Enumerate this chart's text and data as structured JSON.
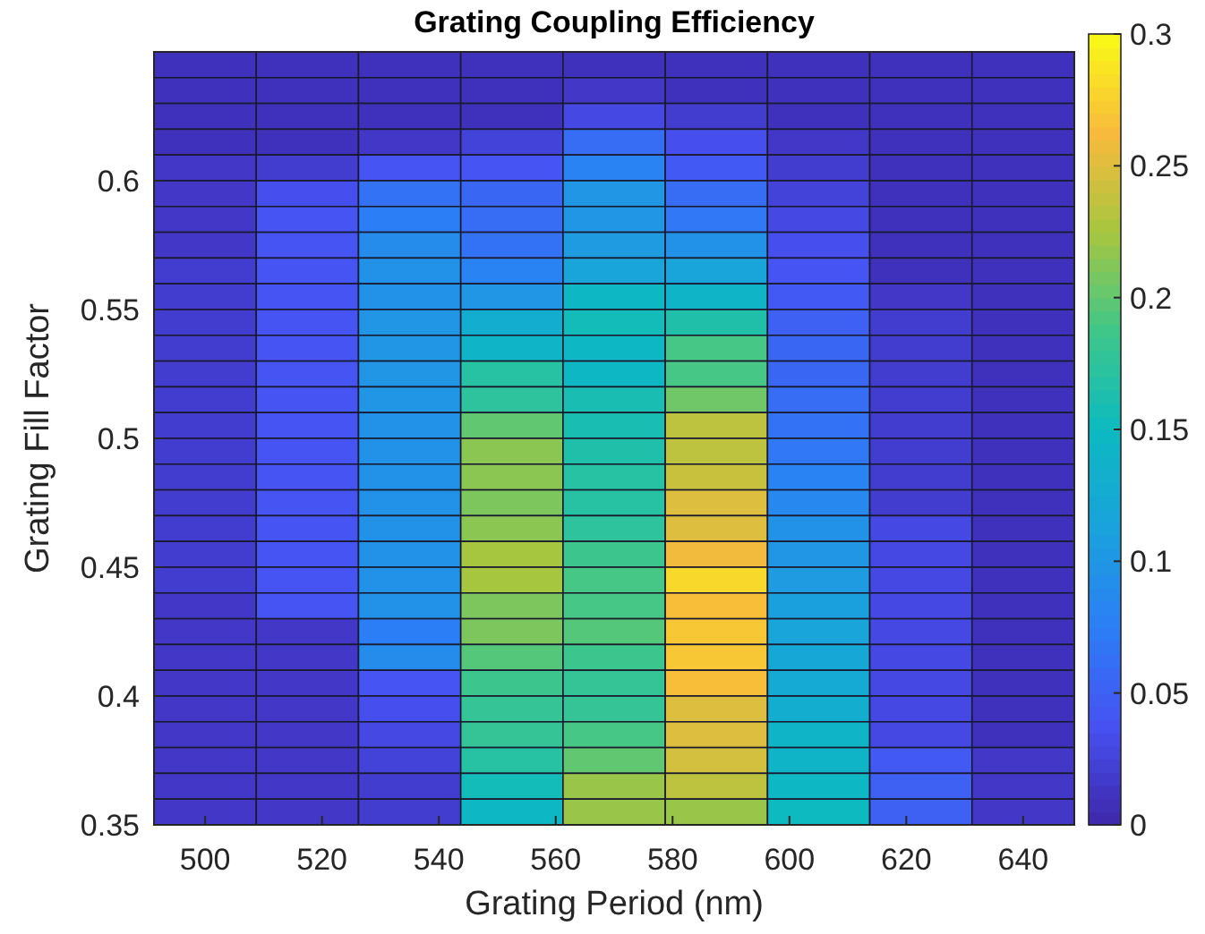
{
  "chart_data": {
    "type": "heatmap",
    "title": "Grating Coupling Efficiency",
    "xlabel": "Grating Period (nm)",
    "ylabel": "Grating Fill Factor",
    "x": [
      500,
      517.5,
      535,
      552.5,
      570,
      587.5,
      605,
      622.5,
      640
    ],
    "y": [
      0.645,
      0.635,
      0.625,
      0.615,
      0.605,
      0.595,
      0.585,
      0.575,
      0.565,
      0.555,
      0.545,
      0.535,
      0.525,
      0.515,
      0.505,
      0.495,
      0.485,
      0.475,
      0.465,
      0.455,
      0.445,
      0.435,
      0.425,
      0.415,
      0.405,
      0.395,
      0.385,
      0.375,
      0.365,
      0.355
    ],
    "xlim": [
      491.25,
      648.75
    ],
    "ylim": [
      0.35,
      0.65
    ],
    "xticks": [
      500,
      520,
      540,
      560,
      580,
      600,
      620,
      640
    ],
    "yticks": [
      0.35,
      0.4,
      0.45,
      0.5,
      0.55,
      0.6
    ],
    "clim": [
      0,
      0.3
    ],
    "cticks": [
      0,
      0.05,
      0.1,
      0.15,
      0.2,
      0.25,
      0.3
    ],
    "cells": [
      [
        0.01,
        0.01,
        0.01,
        0.01,
        0.01,
        0.01,
        0.01,
        0.01,
        0.01
      ],
      [
        0.01,
        0.01,
        0.01,
        0.01,
        0.015,
        0.01,
        0.01,
        0.01,
        0.01
      ],
      [
        0.01,
        0.01,
        0.01,
        0.01,
        0.03,
        0.02,
        0.01,
        0.01,
        0.01
      ],
      [
        0.01,
        0.01,
        0.015,
        0.025,
        0.06,
        0.035,
        0.015,
        0.01,
        0.01
      ],
      [
        0.015,
        0.02,
        0.04,
        0.04,
        0.08,
        0.045,
        0.02,
        0.01,
        0.01
      ],
      [
        0.015,
        0.035,
        0.065,
        0.055,
        0.1,
        0.06,
        0.025,
        0.01,
        0.01
      ],
      [
        0.015,
        0.04,
        0.075,
        0.06,
        0.1,
        0.07,
        0.03,
        0.01,
        0.01
      ],
      [
        0.015,
        0.04,
        0.09,
        0.065,
        0.105,
        0.095,
        0.035,
        0.01,
        0.01
      ],
      [
        0.02,
        0.04,
        0.095,
        0.08,
        0.115,
        0.115,
        0.04,
        0.01,
        0.01
      ],
      [
        0.02,
        0.04,
        0.095,
        0.1,
        0.145,
        0.14,
        0.045,
        0.015,
        0.01
      ],
      [
        0.02,
        0.04,
        0.1,
        0.13,
        0.155,
        0.165,
        0.05,
        0.02,
        0.01
      ],
      [
        0.02,
        0.04,
        0.1,
        0.14,
        0.145,
        0.19,
        0.055,
        0.02,
        0.01
      ],
      [
        0.02,
        0.04,
        0.1,
        0.17,
        0.145,
        0.19,
        0.055,
        0.02,
        0.01
      ],
      [
        0.02,
        0.04,
        0.1,
        0.175,
        0.16,
        0.205,
        0.06,
        0.02,
        0.01
      ],
      [
        0.02,
        0.04,
        0.095,
        0.2,
        0.16,
        0.235,
        0.065,
        0.02,
        0.01
      ],
      [
        0.02,
        0.04,
        0.095,
        0.215,
        0.165,
        0.235,
        0.07,
        0.02,
        0.01
      ],
      [
        0.02,
        0.04,
        0.095,
        0.215,
        0.17,
        0.24,
        0.08,
        0.02,
        0.01
      ],
      [
        0.02,
        0.04,
        0.095,
        0.21,
        0.17,
        0.25,
        0.085,
        0.02,
        0.01
      ],
      [
        0.02,
        0.04,
        0.095,
        0.215,
        0.175,
        0.25,
        0.095,
        0.03,
        0.01
      ],
      [
        0.02,
        0.04,
        0.095,
        0.225,
        0.185,
        0.26,
        0.1,
        0.03,
        0.01
      ],
      [
        0.02,
        0.04,
        0.095,
        0.225,
        0.19,
        0.28,
        0.105,
        0.03,
        0.01
      ],
      [
        0.015,
        0.04,
        0.095,
        0.21,
        0.19,
        0.265,
        0.11,
        0.03,
        0.01
      ],
      [
        0.015,
        0.015,
        0.075,
        0.21,
        0.195,
        0.27,
        0.115,
        0.03,
        0.01
      ],
      [
        0.015,
        0.015,
        0.09,
        0.195,
        0.185,
        0.27,
        0.12,
        0.03,
        0.01
      ],
      [
        0.015,
        0.015,
        0.04,
        0.185,
        0.18,
        0.265,
        0.125,
        0.03,
        0.01
      ],
      [
        0.015,
        0.015,
        0.035,
        0.18,
        0.18,
        0.25,
        0.13,
        0.03,
        0.01
      ],
      [
        0.015,
        0.015,
        0.03,
        0.18,
        0.19,
        0.25,
        0.14,
        0.03,
        0.01
      ],
      [
        0.015,
        0.015,
        0.025,
        0.17,
        0.2,
        0.245,
        0.14,
        0.045,
        0.015
      ],
      [
        0.015,
        0.015,
        0.02,
        0.155,
        0.22,
        0.235,
        0.145,
        0.05,
        0.015
      ],
      [
        0.015,
        0.015,
        0.02,
        0.145,
        0.22,
        0.22,
        0.15,
        0.05,
        0.015
      ]
    ]
  }
}
